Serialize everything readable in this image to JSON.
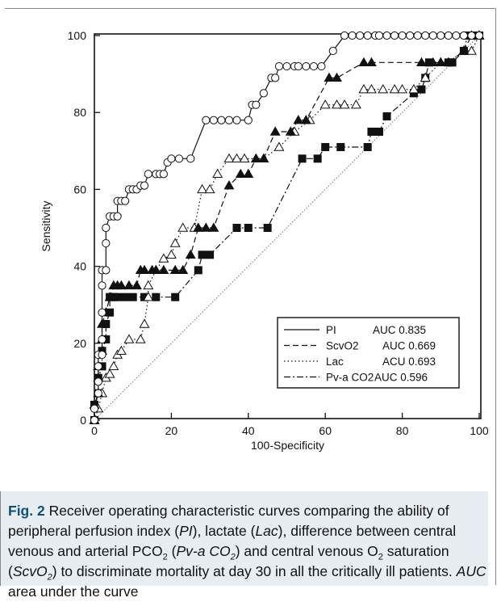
{
  "chart_data": {
    "type": "line",
    "xlabel": "100-Specificity",
    "ylabel": "Sensitivity",
    "xlim": [
      0,
      100
    ],
    "ylim": [
      0,
      100
    ],
    "x_ticks": [
      0,
      20,
      40,
      60,
      80,
      100
    ],
    "y_ticks": [
      0,
      20,
      40,
      60,
      80,
      100
    ],
    "grid": false,
    "legend_position": "bottom-right",
    "reference_line": {
      "from": [
        0,
        0
      ],
      "to": [
        100,
        100
      ],
      "style": "thin-dotted"
    },
    "series": [
      {
        "name": "PI",
        "auc_label": "AUC",
        "auc": "0.835",
        "marker": "open-circle",
        "line": "solid",
        "points": [
          [
            0,
            0
          ],
          [
            0,
            3
          ],
          [
            1,
            7
          ],
          [
            1,
            10
          ],
          [
            1,
            14
          ],
          [
            1,
            17
          ],
          [
            2,
            17
          ],
          [
            2,
            21
          ],
          [
            2,
            28
          ],
          [
            2,
            35
          ],
          [
            2,
            39
          ],
          [
            3,
            39
          ],
          [
            3,
            46
          ],
          [
            3,
            50
          ],
          [
            4,
            53
          ],
          [
            5,
            53
          ],
          [
            6,
            53
          ],
          [
            6,
            57
          ],
          [
            7,
            57
          ],
          [
            8,
            57
          ],
          [
            9,
            60
          ],
          [
            10,
            60
          ],
          [
            11,
            60
          ],
          [
            12,
            61
          ],
          [
            13,
            61
          ],
          [
            14,
            64
          ],
          [
            16,
            64
          ],
          [
            17,
            64
          ],
          [
            18,
            64
          ],
          [
            19,
            67
          ],
          [
            20,
            68
          ],
          [
            22,
            68
          ],
          [
            25,
            68
          ],
          [
            29,
            78
          ],
          [
            31,
            78
          ],
          [
            33,
            78
          ],
          [
            35,
            78
          ],
          [
            37,
            78
          ],
          [
            40,
            78
          ],
          [
            41,
            82
          ],
          [
            42,
            82
          ],
          [
            44,
            85
          ],
          [
            46,
            89
          ],
          [
            47,
            89
          ],
          [
            48,
            92
          ],
          [
            50,
            92
          ],
          [
            52,
            92
          ],
          [
            53,
            92
          ],
          [
            55,
            92
          ],
          [
            57,
            92
          ],
          [
            59,
            92
          ],
          [
            62,
            96
          ],
          [
            65,
            100
          ],
          [
            67,
            100
          ],
          [
            69,
            100
          ],
          [
            71,
            100
          ],
          [
            73,
            100
          ],
          [
            74,
            100
          ],
          [
            76,
            100
          ],
          [
            78,
            100
          ],
          [
            80,
            100
          ],
          [
            82,
            100
          ],
          [
            84,
            100
          ],
          [
            86,
            100
          ],
          [
            88,
            100
          ],
          [
            90,
            100
          ],
          [
            92,
            100
          ],
          [
            94,
            100
          ],
          [
            96,
            100
          ],
          [
            98,
            100
          ],
          [
            100,
            100
          ]
        ]
      },
      {
        "name": "ScvO2",
        "auc_label": "AUC",
        "auc": "0.669",
        "marker": "filled-triangle",
        "line": "dashed",
        "points": [
          [
            0,
            0
          ],
          [
            0,
            4
          ],
          [
            1,
            7
          ],
          [
            1,
            11
          ],
          [
            1,
            14
          ],
          [
            2,
            18
          ],
          [
            2,
            21
          ],
          [
            2,
            25
          ],
          [
            3,
            28
          ],
          [
            4,
            32
          ],
          [
            5,
            35
          ],
          [
            6,
            35
          ],
          [
            7,
            35
          ],
          [
            9,
            35
          ],
          [
            11,
            35
          ],
          [
            12,
            39
          ],
          [
            13,
            39
          ],
          [
            15,
            39
          ],
          [
            16,
            39
          ],
          [
            18,
            39
          ],
          [
            21,
            39
          ],
          [
            23,
            39
          ],
          [
            25,
            43
          ],
          [
            27,
            50
          ],
          [
            29,
            50
          ],
          [
            31,
            50
          ],
          [
            35,
            61
          ],
          [
            38,
            64
          ],
          [
            40,
            64
          ],
          [
            42,
            68
          ],
          [
            44,
            68
          ],
          [
            47,
            75
          ],
          [
            51,
            75
          ],
          [
            53,
            78
          ],
          [
            55,
            78
          ],
          [
            61,
            89
          ],
          [
            63,
            89
          ],
          [
            70,
            93
          ],
          [
            72,
            93
          ],
          [
            85,
            93
          ],
          [
            88,
            93
          ],
          [
            90,
            93
          ],
          [
            92,
            93
          ],
          [
            96,
            96
          ],
          [
            98,
            100
          ],
          [
            100,
            100
          ]
        ]
      },
      {
        "name": "Lac",
        "auc_label": "ACU",
        "auc": "0.693",
        "marker": "open-triangle",
        "line": "dotted",
        "points": [
          [
            0,
            0
          ],
          [
            1,
            3
          ],
          [
            2,
            7
          ],
          [
            3,
            11
          ],
          [
            4,
            12
          ],
          [
            5,
            14
          ],
          [
            6,
            17
          ],
          [
            7,
            18
          ],
          [
            9,
            21
          ],
          [
            12,
            21
          ],
          [
            13,
            25
          ],
          [
            14,
            32
          ],
          [
            14,
            35
          ],
          [
            16,
            39
          ],
          [
            18,
            42
          ],
          [
            20,
            43
          ],
          [
            21,
            46
          ],
          [
            23,
            50
          ],
          [
            26,
            50
          ],
          [
            28,
            60
          ],
          [
            30,
            60
          ],
          [
            32,
            64
          ],
          [
            35,
            68
          ],
          [
            37,
            68
          ],
          [
            39,
            68
          ],
          [
            42,
            68
          ],
          [
            44,
            68
          ],
          [
            48,
            71
          ],
          [
            52,
            75
          ],
          [
            56,
            78
          ],
          [
            60,
            82
          ],
          [
            63,
            82
          ],
          [
            65,
            82
          ],
          [
            68,
            82
          ],
          [
            70,
            86
          ],
          [
            72,
            86
          ],
          [
            75,
            86
          ],
          [
            78,
            86
          ],
          [
            80,
            86
          ],
          [
            83,
            86
          ],
          [
            86,
            89
          ],
          [
            90,
            93
          ],
          [
            92,
            93
          ],
          [
            96,
            96
          ],
          [
            98,
            96
          ],
          [
            100,
            100
          ]
        ]
      },
      {
        "name": "Pv-a CO2",
        "auc_label": "AUC",
        "auc": "0.596",
        "marker": "filled-square",
        "line": "dash-dot",
        "points": [
          [
            0,
            0
          ],
          [
            0,
            4
          ],
          [
            1,
            7
          ],
          [
            1,
            11
          ],
          [
            2,
            14
          ],
          [
            2,
            18
          ],
          [
            3,
            21
          ],
          [
            3,
            25
          ],
          [
            4,
            28
          ],
          [
            4,
            32
          ],
          [
            5,
            32
          ],
          [
            6,
            32
          ],
          [
            8,
            32
          ],
          [
            10,
            32
          ],
          [
            13,
            32
          ],
          [
            16,
            32
          ],
          [
            21,
            32
          ],
          [
            27,
            39
          ],
          [
            28,
            43
          ],
          [
            30,
            43
          ],
          [
            37,
            50
          ],
          [
            40,
            50
          ],
          [
            45,
            50
          ],
          [
            54,
            68
          ],
          [
            58,
            68
          ],
          [
            60,
            71
          ],
          [
            64,
            71
          ],
          [
            71,
            71
          ],
          [
            72,
            75
          ],
          [
            74,
            75
          ],
          [
            76,
            79
          ],
          [
            83,
            85
          ],
          [
            85,
            86
          ],
          [
            86,
            89
          ],
          [
            87,
            93
          ],
          [
            92,
            93
          ],
          [
            93,
            93
          ],
          [
            96,
            96
          ],
          [
            97,
            100
          ],
          [
            99,
            100
          ],
          [
            100,
            100
          ]
        ]
      }
    ]
  },
  "caption": {
    "label": "Fig. 2",
    "t1": " Receiver operating characteristic curves comparing the ability of peripheral perfusion index (",
    "i1": "PI",
    "t2": "), lactate (",
    "i2": "Lac",
    "t3": "), difference between central venous and arterial PCO",
    "s1": "2",
    "t4": " (",
    "i3": "Pv-a CO",
    "s2": "2",
    "t5": ") and central venous O",
    "s3": "2",
    "t6": " saturation (",
    "i4": "ScvO",
    "s4": "2",
    "t7": ") to discriminate mortality at day 30 in all the critically ill patients. ",
    "i5": "AUC",
    "t8": " area under the curve"
  }
}
